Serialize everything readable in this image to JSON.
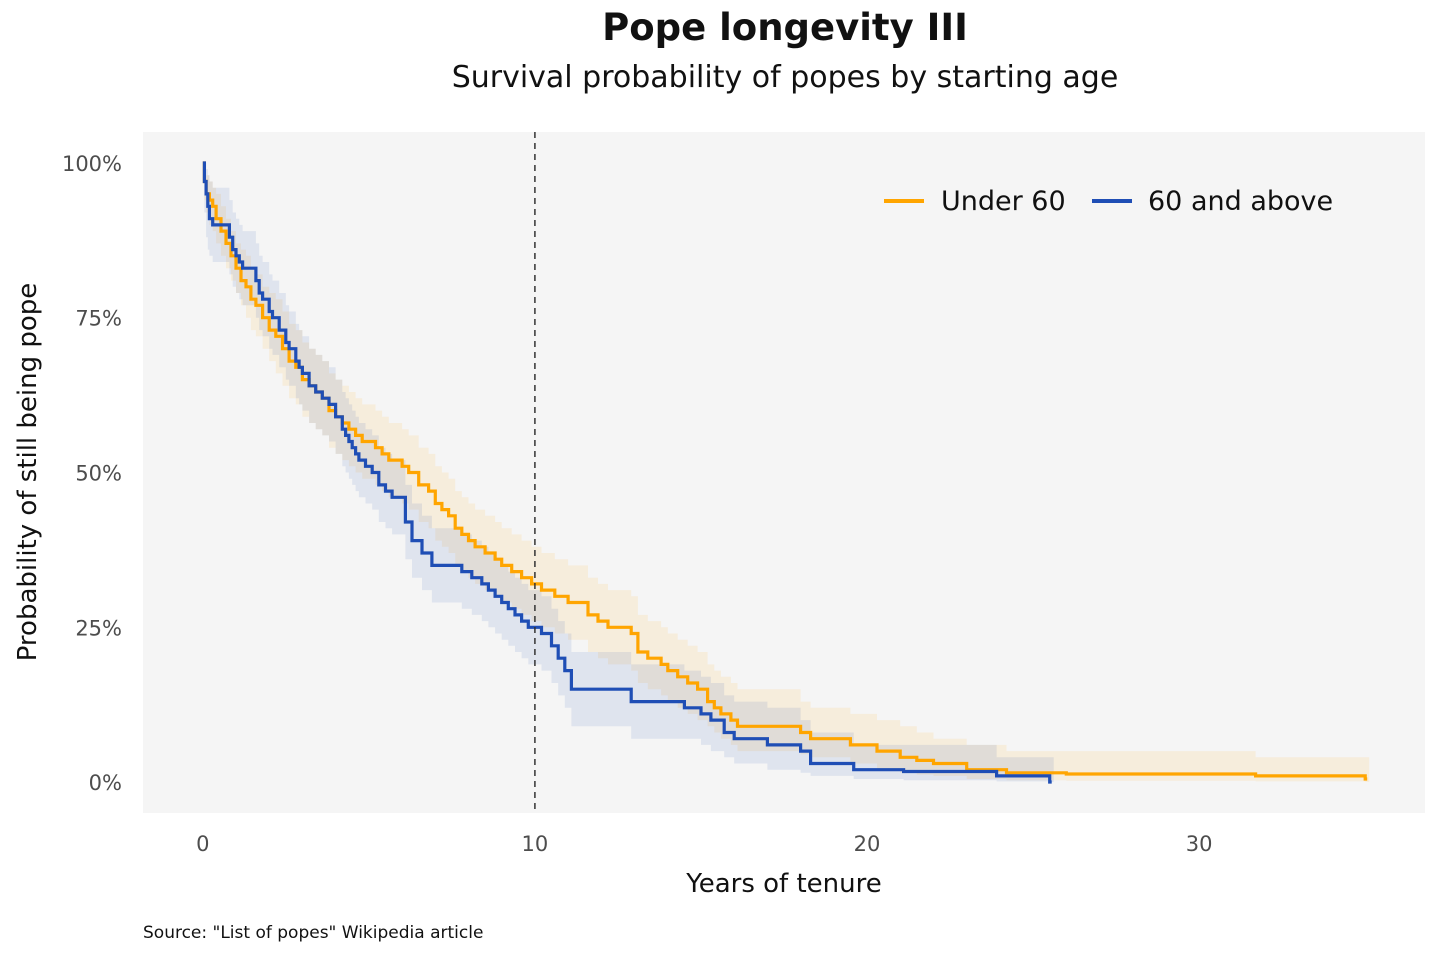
{
  "chart_data": {
    "type": "line",
    "title": "Pope longevity III",
    "subtitle": "Survival probability of popes by starting age",
    "xlabel": "Years of tenure",
    "ylabel": "Probability of still being pope",
    "caption": "Source: \"List of popes\" Wikipedia article",
    "xlim": [
      -1.8,
      36.8
    ],
    "ylim": [
      -0.05,
      1.05
    ],
    "x_ticks": [
      0,
      10,
      20,
      30
    ],
    "y_ticks": [
      0,
      0.25,
      0.5,
      0.75,
      1.0
    ],
    "y_tick_labels": [
      "0%",
      "25%",
      "50%",
      "75%",
      "100%"
    ],
    "vline_x": 10,
    "grid": false,
    "legend_position": "top-right",
    "panel_background": "#f5f5f5",
    "series": [
      {
        "name": "Under 60",
        "color": "#ffa500",
        "step": true,
        "x": [
          0,
          0.05,
          0.1,
          0.2,
          0.3,
          0.4,
          0.55,
          0.7,
          0.85,
          1.0,
          1.15,
          1.3,
          1.45,
          1.6,
          1.8,
          2.0,
          2.2,
          2.4,
          2.6,
          2.8,
          3.0,
          3.2,
          3.4,
          3.6,
          3.8,
          4.0,
          4.2,
          4.4,
          4.6,
          4.8,
          5.0,
          5.2,
          5.4,
          5.6,
          6.0,
          6.2,
          6.5,
          6.8,
          7.0,
          7.2,
          7.4,
          7.6,
          7.8,
          8.0,
          8.2,
          8.5,
          8.8,
          9.0,
          9.3,
          9.6,
          9.9,
          10.2,
          10.6,
          11.0,
          11.6,
          11.9,
          12.2,
          12.9,
          13.1,
          13.4,
          13.8,
          14.0,
          14.3,
          14.6,
          14.9,
          15.2,
          15.4,
          15.6,
          15.9,
          16.1,
          18.0,
          18.3,
          19.5,
          20.3,
          21.0,
          21.5,
          22.0,
          23.0,
          24.2,
          26.0,
          31.7,
          35.0
        ],
        "y": [
          1.0,
          0.97,
          0.95,
          0.94,
          0.93,
          0.91,
          0.89,
          0.87,
          0.85,
          0.83,
          0.81,
          0.8,
          0.78,
          0.77,
          0.75,
          0.73,
          0.72,
          0.7,
          0.68,
          0.67,
          0.65,
          0.64,
          0.63,
          0.62,
          0.6,
          0.59,
          0.58,
          0.57,
          0.56,
          0.55,
          0.55,
          0.54,
          0.53,
          0.52,
          0.51,
          0.5,
          0.48,
          0.47,
          0.45,
          0.44,
          0.43,
          0.41,
          0.4,
          0.39,
          0.38,
          0.37,
          0.36,
          0.35,
          0.34,
          0.33,
          0.32,
          0.31,
          0.3,
          0.29,
          0.27,
          0.26,
          0.25,
          0.24,
          0.21,
          0.2,
          0.19,
          0.18,
          0.17,
          0.16,
          0.15,
          0.13,
          0.12,
          0.11,
          0.1,
          0.09,
          0.08,
          0.07,
          0.06,
          0.05,
          0.04,
          0.035,
          0.03,
          0.02,
          0.015,
          0.013,
          0.01,
          0.005
        ],
        "ci_lower": [
          1.0,
          0.94,
          0.92,
          0.9,
          0.89,
          0.87,
          0.85,
          0.83,
          0.81,
          0.79,
          0.77,
          0.75,
          0.73,
          0.72,
          0.7,
          0.68,
          0.66,
          0.64,
          0.62,
          0.61,
          0.59,
          0.58,
          0.57,
          0.56,
          0.54,
          0.53,
          0.52,
          0.51,
          0.5,
          0.49,
          0.49,
          0.48,
          0.47,
          0.46,
          0.45,
          0.44,
          0.42,
          0.41,
          0.39,
          0.38,
          0.37,
          0.35,
          0.34,
          0.33,
          0.32,
          0.31,
          0.3,
          0.29,
          0.28,
          0.27,
          0.26,
          0.25,
          0.24,
          0.23,
          0.21,
          0.2,
          0.19,
          0.18,
          0.16,
          0.15,
          0.14,
          0.13,
          0.12,
          0.11,
          0.1,
          0.09,
          0.08,
          0.07,
          0.06,
          0.05,
          0.045,
          0.04,
          0.03,
          0.02,
          0.015,
          0.012,
          0.01,
          0.005,
          0.003,
          0.002,
          0.001,
          0.0
        ],
        "ci_upper": [
          1.0,
          1.0,
          0.98,
          0.97,
          0.96,
          0.95,
          0.93,
          0.91,
          0.89,
          0.87,
          0.86,
          0.85,
          0.83,
          0.82,
          0.8,
          0.79,
          0.78,
          0.76,
          0.74,
          0.73,
          0.71,
          0.7,
          0.69,
          0.68,
          0.66,
          0.65,
          0.64,
          0.63,
          0.62,
          0.61,
          0.61,
          0.6,
          0.59,
          0.58,
          0.57,
          0.56,
          0.54,
          0.53,
          0.51,
          0.5,
          0.49,
          0.47,
          0.46,
          0.45,
          0.44,
          0.43,
          0.42,
          0.41,
          0.4,
          0.39,
          0.38,
          0.37,
          0.36,
          0.35,
          0.33,
          0.32,
          0.31,
          0.3,
          0.27,
          0.26,
          0.25,
          0.24,
          0.23,
          0.22,
          0.21,
          0.19,
          0.18,
          0.17,
          0.16,
          0.15,
          0.13,
          0.12,
          0.11,
          0.1,
          0.09,
          0.08,
          0.07,
          0.06,
          0.05,
          0.05,
          0.04,
          0.04
        ]
      },
      {
        "name": "60 and above",
        "color": "#1f4eb5",
        "step": true,
        "x": [
          0,
          0.05,
          0.1,
          0.15,
          0.2,
          0.3,
          0.8,
          0.9,
          1.0,
          1.1,
          1.2,
          1.6,
          1.7,
          1.8,
          2.0,
          2.1,
          2.3,
          2.5,
          2.6,
          2.8,
          2.9,
          3.0,
          3.2,
          3.4,
          3.6,
          3.8,
          4.0,
          4.2,
          4.3,
          4.4,
          4.5,
          4.6,
          4.7,
          4.9,
          5.1,
          5.3,
          5.5,
          5.7,
          6.1,
          6.3,
          6.6,
          6.9,
          7.8,
          8.1,
          8.4,
          8.6,
          8.8,
          9.0,
          9.2,
          9.4,
          9.6,
          9.8,
          10.2,
          10.5,
          10.7,
          10.9,
          11.1,
          12.9,
          14.5,
          15.0,
          15.3,
          15.7,
          16.0,
          17.0,
          18.0,
          18.3,
          19.6,
          21.1,
          23.9,
          25.5
        ],
        "y": [
          1.0,
          0.97,
          0.95,
          0.93,
          0.91,
          0.9,
          0.88,
          0.86,
          0.85,
          0.84,
          0.83,
          0.81,
          0.79,
          0.78,
          0.76,
          0.75,
          0.73,
          0.71,
          0.7,
          0.68,
          0.67,
          0.66,
          0.64,
          0.63,
          0.62,
          0.61,
          0.59,
          0.57,
          0.56,
          0.55,
          0.54,
          0.53,
          0.52,
          0.51,
          0.5,
          0.48,
          0.47,
          0.46,
          0.42,
          0.39,
          0.37,
          0.35,
          0.34,
          0.33,
          0.32,
          0.31,
          0.3,
          0.29,
          0.28,
          0.27,
          0.26,
          0.25,
          0.24,
          0.22,
          0.2,
          0.18,
          0.15,
          0.13,
          0.12,
          0.11,
          0.1,
          0.08,
          0.07,
          0.06,
          0.05,
          0.03,
          0.02,
          0.017,
          0.01,
          0.0
        ],
        "ci_lower": [
          1.0,
          0.92,
          0.88,
          0.86,
          0.85,
          0.84,
          0.82,
          0.8,
          0.79,
          0.78,
          0.77,
          0.75,
          0.73,
          0.72,
          0.7,
          0.69,
          0.67,
          0.65,
          0.64,
          0.62,
          0.61,
          0.6,
          0.58,
          0.57,
          0.56,
          0.55,
          0.53,
          0.51,
          0.5,
          0.49,
          0.48,
          0.47,
          0.46,
          0.45,
          0.44,
          0.42,
          0.41,
          0.4,
          0.36,
          0.33,
          0.31,
          0.29,
          0.28,
          0.27,
          0.26,
          0.25,
          0.24,
          0.23,
          0.22,
          0.21,
          0.2,
          0.19,
          0.18,
          0.16,
          0.14,
          0.12,
          0.09,
          0.07,
          0.07,
          0.06,
          0.05,
          0.04,
          0.03,
          0.02,
          0.015,
          0.01,
          0.005,
          0.003,
          0.001,
          0.0
        ],
        "ci_upper": [
          1.0,
          1.0,
          0.99,
          0.98,
          0.97,
          0.96,
          0.94,
          0.92,
          0.91,
          0.9,
          0.89,
          0.87,
          0.85,
          0.84,
          0.82,
          0.81,
          0.79,
          0.77,
          0.76,
          0.74,
          0.73,
          0.72,
          0.7,
          0.69,
          0.68,
          0.67,
          0.65,
          0.63,
          0.62,
          0.61,
          0.6,
          0.59,
          0.58,
          0.57,
          0.56,
          0.54,
          0.53,
          0.52,
          0.48,
          0.45,
          0.43,
          0.41,
          0.4,
          0.39,
          0.38,
          0.37,
          0.36,
          0.35,
          0.34,
          0.33,
          0.32,
          0.31,
          0.3,
          0.28,
          0.26,
          0.24,
          0.21,
          0.19,
          0.18,
          0.17,
          0.16,
          0.14,
          0.13,
          0.12,
          0.1,
          0.08,
          0.06,
          0.06,
          0.04,
          0.04
        ]
      }
    ]
  }
}
